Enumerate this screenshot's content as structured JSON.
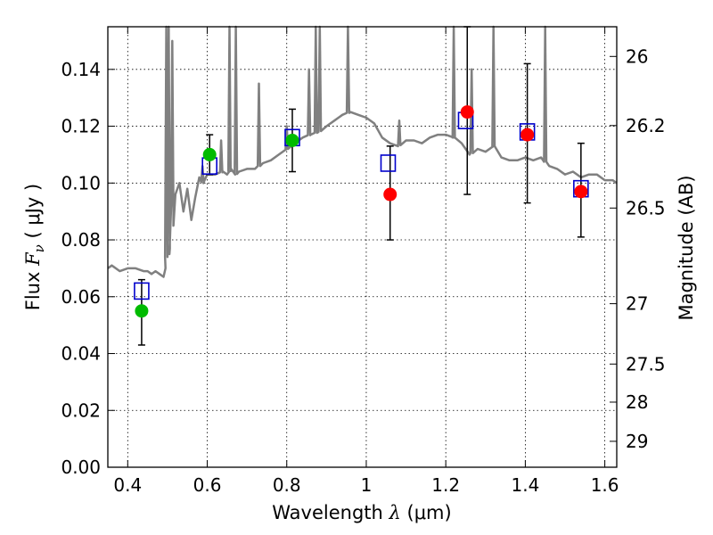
{
  "chart_data": {
    "type": "scatter",
    "xlabel": {
      "prefix": "Wavelength  ",
      "symbol": "λ",
      "suffix": " (μm)"
    },
    "ylabel": {
      "prefix": "Flux  ",
      "symbol": "F",
      "subscript": "ν",
      "suffix": "  ( μJy )"
    },
    "y2label": "Magnitude (AB)",
    "xlim": [
      0.35,
      1.63
    ],
    "ylim": [
      0,
      0.155
    ],
    "grid": true,
    "xticks": [
      {
        "value": 0.4,
        "label": "0.4"
      },
      {
        "value": 0.6,
        "label": "0.6"
      },
      {
        "value": 0.8,
        "label": "0.8"
      },
      {
        "value": 1.0,
        "label": "1"
      },
      {
        "value": 1.2,
        "label": "1.2"
      },
      {
        "value": 1.4,
        "label": "1.4"
      },
      {
        "value": 1.6,
        "label": "1.6"
      }
    ],
    "yticks": [
      {
        "value": 0.0,
        "label": "0.00"
      },
      {
        "value": 0.02,
        "label": "0.02"
      },
      {
        "value": 0.04,
        "label": "0.04"
      },
      {
        "value": 0.06,
        "label": "0.06"
      },
      {
        "value": 0.08,
        "label": "0.08"
      },
      {
        "value": 0.1,
        "label": "0.10"
      },
      {
        "value": 0.12,
        "label": "0.12"
      },
      {
        "value": 0.14,
        "label": "0.14"
      }
    ],
    "y2ticks": [
      {
        "mag": 26,
        "label": "26"
      },
      {
        "mag": 26.2,
        "label": "26.2"
      },
      {
        "mag": 26.5,
        "label": "26.5"
      },
      {
        "mag": 27,
        "label": "27"
      },
      {
        "mag": 27.5,
        "label": "27.5"
      },
      {
        "mag": 28,
        "label": "28"
      },
      {
        "mag": 29,
        "label": "29"
      }
    ],
    "model_spectrum": {
      "color": "#808080",
      "x": [
        0.35,
        0.36,
        0.37,
        0.38,
        0.4,
        0.42,
        0.44,
        0.45,
        0.46,
        0.47,
        0.48,
        0.49,
        0.495,
        0.5,
        0.505,
        0.51,
        0.515,
        0.52,
        0.53,
        0.54,
        0.55,
        0.56,
        0.57,
        0.58,
        0.59,
        0.6,
        0.62,
        0.64,
        0.65,
        0.655,
        0.66,
        0.67,
        0.68,
        0.7,
        0.72,
        0.74,
        0.76,
        0.78,
        0.8,
        0.82,
        0.84,
        0.86,
        0.88,
        0.9,
        0.92,
        0.94,
        0.96,
        0.98,
        1.0,
        1.02,
        1.04,
        1.06,
        1.08,
        1.1,
        1.12,
        1.14,
        1.16,
        1.18,
        1.2,
        1.22,
        1.24,
        1.26,
        1.28,
        1.3,
        1.32,
        1.34,
        1.36,
        1.38,
        1.4,
        1.42,
        1.44,
        1.46,
        1.48,
        1.5,
        1.52,
        1.54,
        1.56,
        1.58,
        1.6,
        1.62,
        1.63
      ],
      "y": [
        0.07,
        0.071,
        0.07,
        0.069,
        0.07,
        0.07,
        0.069,
        0.069,
        0.068,
        0.069,
        0.068,
        0.067,
        0.07,
        0.08,
        0.075,
        0.095,
        0.085,
        0.096,
        0.1,
        0.09,
        0.098,
        0.087,
        0.095,
        0.102,
        0.1,
        0.103,
        0.103,
        0.104,
        0.103,
        0.104,
        0.105,
        0.103,
        0.104,
        0.105,
        0.105,
        0.107,
        0.108,
        0.11,
        0.112,
        0.114,
        0.116,
        0.117,
        0.118,
        0.12,
        0.122,
        0.124,
        0.125,
        0.124,
        0.123,
        0.121,
        0.116,
        0.114,
        0.113,
        0.115,
        0.115,
        0.114,
        0.116,
        0.117,
        0.117,
        0.116,
        0.114,
        0.11,
        0.112,
        0.111,
        0.113,
        0.109,
        0.108,
        0.108,
        0.109,
        0.108,
        0.109,
        0.106,
        0.105,
        0.103,
        0.104,
        0.102,
        0.103,
        0.103,
        0.101,
        0.101,
        0.1
      ],
      "emission_lines": [
        {
          "x": 0.497,
          "y": 0.155
        },
        {
          "x": 0.503,
          "y": 0.155
        },
        {
          "x": 0.512,
          "y": 0.15
        },
        {
          "x": 0.588,
          "y": 0.106
        },
        {
          "x": 0.635,
          "y": 0.115
        },
        {
          "x": 0.656,
          "y": 0.155
        },
        {
          "x": 0.672,
          "y": 0.155
        },
        {
          "x": 0.73,
          "y": 0.135
        },
        {
          "x": 0.8,
          "y": 0.12
        },
        {
          "x": 0.856,
          "y": 0.14
        },
        {
          "x": 0.873,
          "y": 0.155
        },
        {
          "x": 0.883,
          "y": 0.155
        },
        {
          "x": 0.954,
          "y": 0.155
        },
        {
          "x": 1.083,
          "y": 0.122
        },
        {
          "x": 1.22,
          "y": 0.155
        },
        {
          "x": 1.265,
          "y": 0.14
        },
        {
          "x": 1.32,
          "y": 0.155
        },
        {
          "x": 1.45,
          "y": 0.155
        }
      ]
    },
    "model_photometry": {
      "marker": "open-square",
      "color": "#0000cc",
      "x": [
        0.435,
        0.606,
        0.814,
        1.055,
        1.25,
        1.405,
        1.54
      ],
      "y": [
        0.062,
        0.106,
        0.116,
        0.107,
        0.122,
        0.118,
        0.098
      ]
    },
    "observed_optical": {
      "marker": "filled-circle",
      "color": "#00bb00",
      "x": [
        0.435,
        0.606,
        0.814
      ],
      "y": [
        0.055,
        0.11,
        0.115
      ],
      "err_low": [
        0.043,
        0.103,
        0.104
      ],
      "err_high": [
        0.066,
        0.117,
        0.126
      ]
    },
    "observed_nir": {
      "marker": "filled-circle",
      "color": "#ff0000",
      "x": [
        1.06,
        1.254,
        1.405,
        1.54
      ],
      "y": [
        0.096,
        0.125,
        0.117,
        0.097
      ],
      "err_low": [
        0.08,
        0.096,
        0.093,
        0.081
      ],
      "err_high": [
        0.113,
        0.155,
        0.142,
        0.114
      ]
    }
  }
}
